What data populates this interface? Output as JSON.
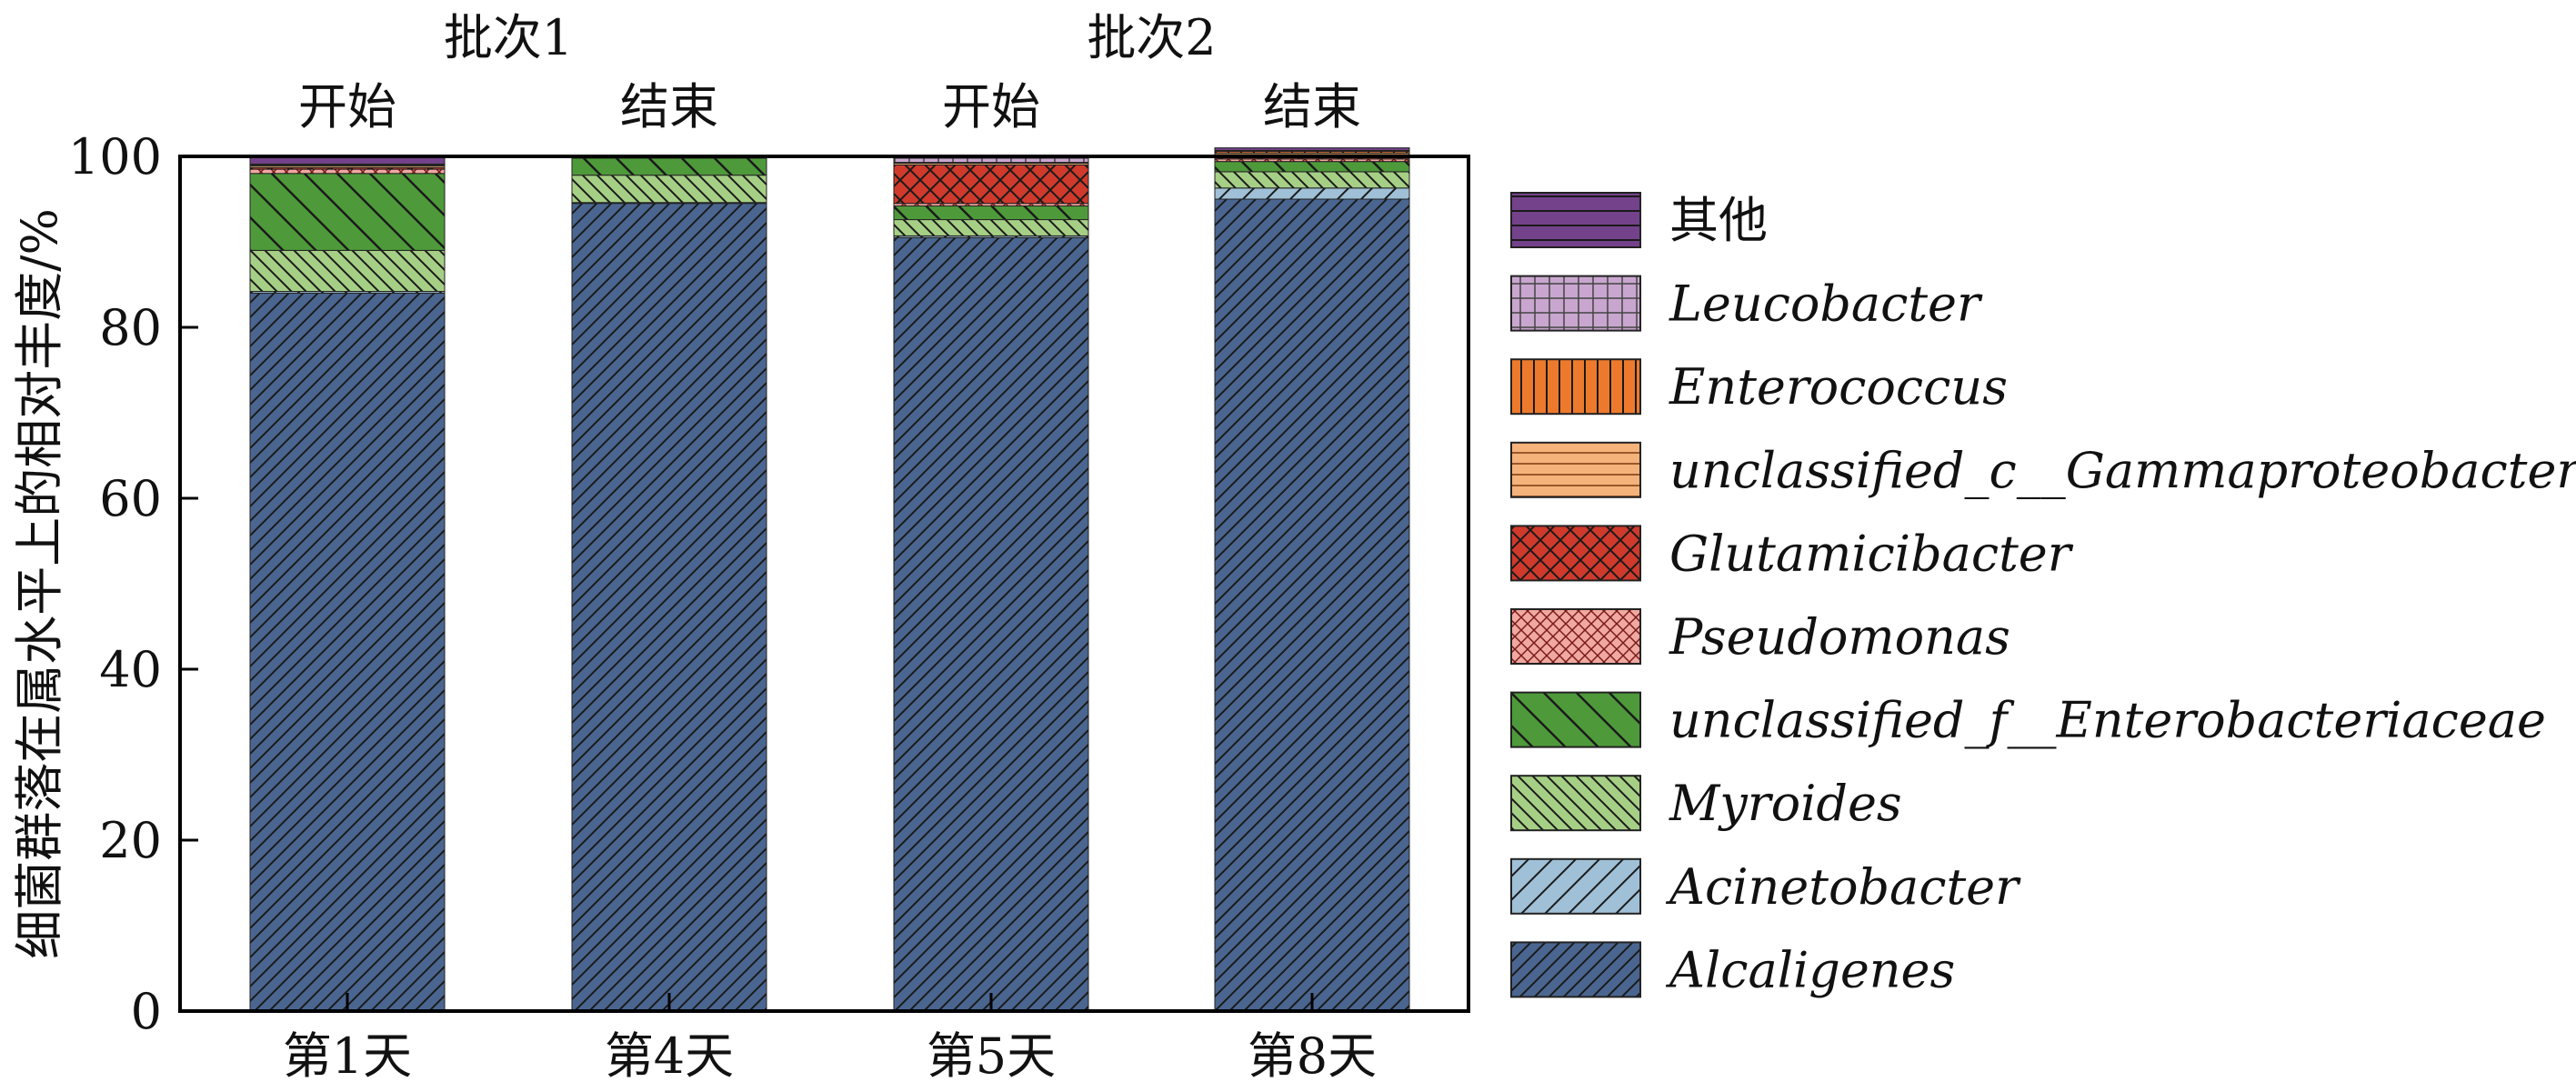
{
  "chart_data": {
    "type": "bar",
    "stacked": true,
    "title": "",
    "xlabel": "",
    "ylabel": "细菌群落在属水平上的相对丰度/%",
    "ylim": [
      0,
      100
    ],
    "yticks": [
      "0",
      "20",
      "40",
      "60",
      "80",
      "100"
    ],
    "categories": [
      "第1天",
      "第4天",
      "第5天",
      "第8天"
    ],
    "top_labels": [
      "开始",
      "结束",
      "开始",
      "结束"
    ],
    "groups": [
      {
        "label": "批次1",
        "span": [
          0,
          1
        ]
      },
      {
        "label": "批次2",
        "span": [
          2,
          3
        ]
      }
    ],
    "legend_position": "right",
    "series": [
      {
        "name": "Alcaligenes",
        "values": [
          84.0,
          94.5,
          90.5,
          95.0
        ],
        "color": "#4a6690",
        "pattern": "diag-fine",
        "italic": true
      },
      {
        "name": "Acinetobacter",
        "values": [
          0.2,
          0.1,
          0.2,
          1.3
        ],
        "color": "#9fc0d6",
        "pattern": "diag-wide",
        "italic": true
      },
      {
        "name": "Myroides",
        "values": [
          4.8,
          3.2,
          1.9,
          1.9
        ],
        "color": "#a6cf86",
        "pattern": "back-fine",
        "italic": true
      },
      {
        "name": "unclassified_f__Enterobacteriaceae",
        "values": [
          9.0,
          2.0,
          1.6,
          1.2
        ],
        "color": "#4e9a3a",
        "pattern": "back-wide",
        "italic": true
      },
      {
        "name": "Pseudomonas",
        "values": [
          0.5,
          0.0,
          0.3,
          0.3
        ],
        "color": "#f0a8a0",
        "pattern": "cross-fine",
        "italic": true
      },
      {
        "name": "Glutamicibacter",
        "values": [
          0.2,
          0.0,
          4.5,
          0.5
        ],
        "color": "#cf3a2c",
        "pattern": "cross-wide",
        "italic": true
      },
      {
        "name": "unclassified_c__Gammaproteobacteria",
        "values": [
          0.2,
          0.1,
          0.2,
          0.2
        ],
        "color": "#f5b27a",
        "pattern": "horiz",
        "italic": true
      },
      {
        "name": "Enterococcus",
        "values": [
          0.1,
          0.0,
          0.1,
          0.2
        ],
        "color": "#ed7a2c",
        "pattern": "vert",
        "italic": true
      },
      {
        "name": "Leucobacter",
        "values": [
          0.1,
          0.0,
          0.5,
          0.1
        ],
        "color": "#c9a6cf",
        "pattern": "grid",
        "italic": true
      },
      {
        "name": "其他",
        "values": [
          0.9,
          0.1,
          0.2,
          0.3
        ],
        "color": "#74428a",
        "pattern": "horiz-wide",
        "italic": false
      }
    ]
  }
}
